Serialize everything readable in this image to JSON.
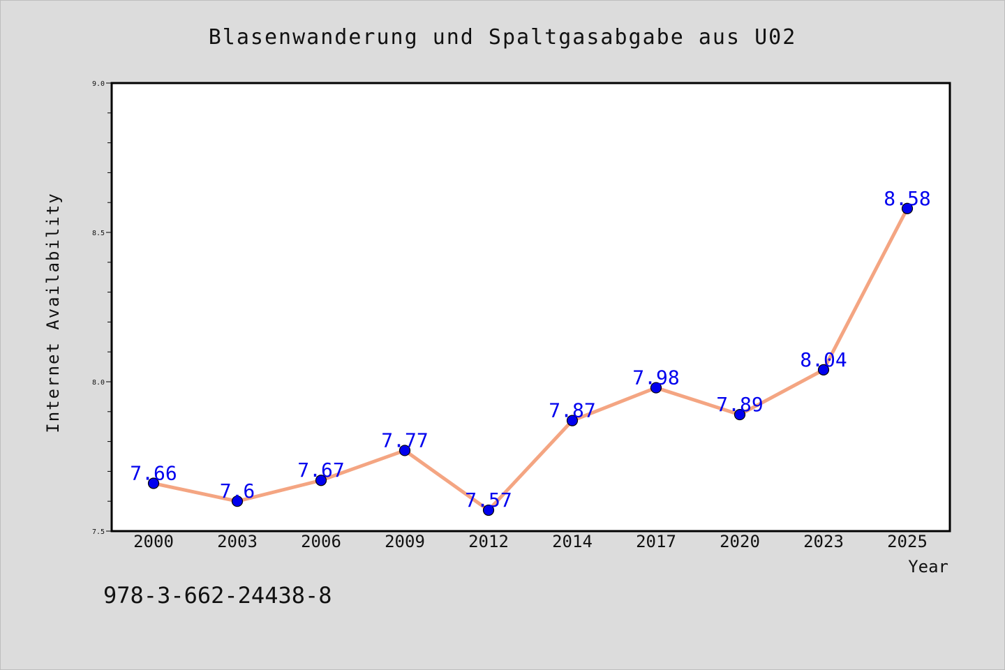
{
  "chart_data": {
    "type": "line",
    "title": "Blasenwanderung und Spaltgasabgabe aus U02",
    "xlabel": "Year",
    "ylabel": "Internet Availability",
    "categories": [
      "2000",
      "2003",
      "2006",
      "2009",
      "2012",
      "2014",
      "2017",
      "2020",
      "2023",
      "2025"
    ],
    "series": [
      {
        "values": [
          7.66,
          7.6,
          7.67,
          7.77,
          7.57,
          7.87,
          7.98,
          7.89,
          8.04,
          8.58
        ],
        "labels": [
          "7.66",
          "7.6",
          "7.67",
          "7.77",
          "7.57",
          "7.87",
          "7.98",
          "7.89",
          "8.04",
          "8.58"
        ]
      }
    ],
    "ylim": [
      7.5,
      9.0
    ],
    "yticks": [
      "7.5",
      "8.0",
      "8.5",
      "9.0"
    ],
    "grid": false,
    "colors": {
      "line": "#f4a582",
      "marker": "#0000ee",
      "label": "#0000ee",
      "background": "#dcdcdc",
      "plot": "#ffffff"
    }
  },
  "footer_text": "978-3-662-24438-8"
}
